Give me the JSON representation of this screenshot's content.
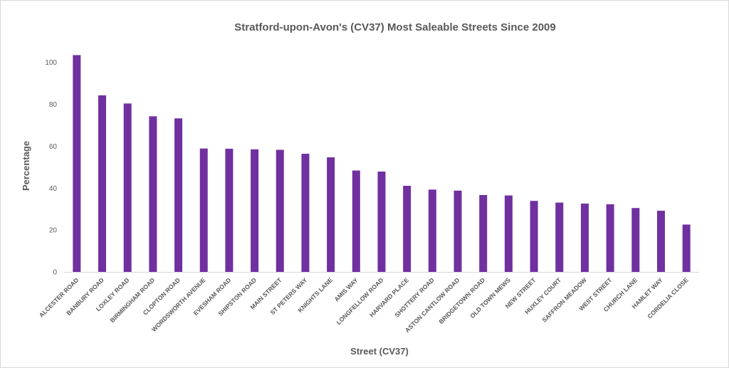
{
  "chart_data": {
    "type": "bar",
    "title": "Stratford-upon-Avon's (CV37) Most Saleable Streets Since 2009",
    "xlabel": "Street (CV37)",
    "ylabel": "Percentage",
    "ylim": [
      0,
      105
    ],
    "yticks": [
      0,
      20,
      40,
      60,
      80,
      100
    ],
    "grid": false,
    "bar_color": "#7030A0",
    "categories": [
      "ALCESTER ROAD",
      "BANBURY ROAD",
      "LOXLEY ROAD",
      "BIRMINGHAM ROAD",
      "CLOPTON ROAD",
      "WORDSWORTH AVENUE",
      "EVESHAM ROAD",
      "SHIPSTON ROAD",
      "MAIN STREET",
      "ST PETERS WAY",
      "KNIGHTS LANE",
      "AMIS WAY",
      "LONGFELLOW ROAD",
      "HARVARD PLACE",
      "SHOTTERY ROAD",
      "ASTON CANTLOW ROAD",
      "BRIDGETOWN ROAD",
      "OLD TOWN MEWS",
      "NEW STREET",
      "HUXLEY COURT",
      "SAFFRON MEADOW",
      "WEST STREET",
      "CHURCH LANE",
      "HAMLET WAY",
      "CORDELIA CLOSE"
    ],
    "values": [
      103.5,
      84.3,
      80.4,
      74.3,
      73.3,
      58.9,
      58.8,
      58.5,
      58.3,
      56.4,
      54.7,
      48.4,
      47.9,
      41.1,
      39.3,
      38.8,
      36.7,
      36.5,
      33.9,
      33.1,
      32.6,
      32.3,
      30.5,
      29.2,
      22.6
    ]
  }
}
